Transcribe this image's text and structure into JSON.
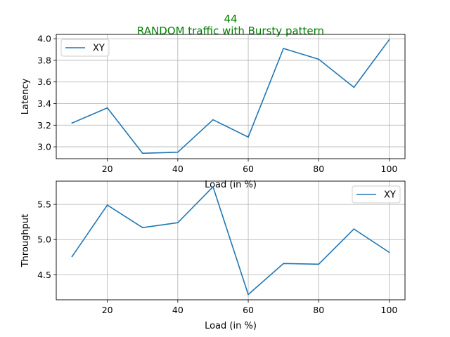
{
  "figure": {
    "suptitle_line1": "44",
    "suptitle_line2": "RANDOM traffic with Bursty pattern",
    "title_color": "#008000"
  },
  "chart_data": [
    {
      "type": "line",
      "xlabel": "Load (in %)",
      "ylabel": "Latency",
      "x": [
        10,
        20,
        30,
        40,
        50,
        60,
        70,
        80,
        90,
        100
      ],
      "series": [
        {
          "name": "XY",
          "color": "#1f77b4",
          "values": [
            3.22,
            3.36,
            2.94,
            2.95,
            3.25,
            3.09,
            3.91,
            3.81,
            3.55,
            3.99
          ]
        }
      ],
      "xlim": [
        5.5,
        104.5
      ],
      "ylim": [
        2.89,
        4.04
      ],
      "xticks": [
        20,
        40,
        60,
        80,
        100
      ],
      "xtick_labels": [
        "20",
        "40",
        "60",
        "80",
        "100"
      ],
      "yticks": [
        3.0,
        3.2,
        3.4,
        3.6,
        3.8,
        4.0
      ],
      "ytick_labels": [
        "3.0",
        "3.2",
        "3.4",
        "3.6",
        "3.8",
        "4.0"
      ],
      "grid": true,
      "legend_position": "upper left"
    },
    {
      "type": "line",
      "xlabel": "Load (in %)",
      "ylabel": "Throughput",
      "x": [
        10,
        20,
        30,
        40,
        50,
        60,
        70,
        80,
        90,
        100
      ],
      "series": [
        {
          "name": "XY",
          "color": "#1f77b4",
          "values": [
            4.76,
            5.49,
            5.17,
            5.24,
            5.75,
            4.22,
            4.66,
            4.65,
            5.15,
            4.82
          ]
        }
      ],
      "xlim": [
        5.5,
        104.5
      ],
      "ylim": [
        4.145,
        5.83
      ],
      "xticks": [
        20,
        40,
        60,
        80,
        100
      ],
      "xtick_labels": [
        "20",
        "40",
        "60",
        "80",
        "100"
      ],
      "yticks": [
        4.5,
        5.0,
        5.5
      ],
      "ytick_labels": [
        "4.5",
        "5.0",
        "5.5"
      ],
      "grid": true,
      "legend_position": "upper right"
    }
  ]
}
